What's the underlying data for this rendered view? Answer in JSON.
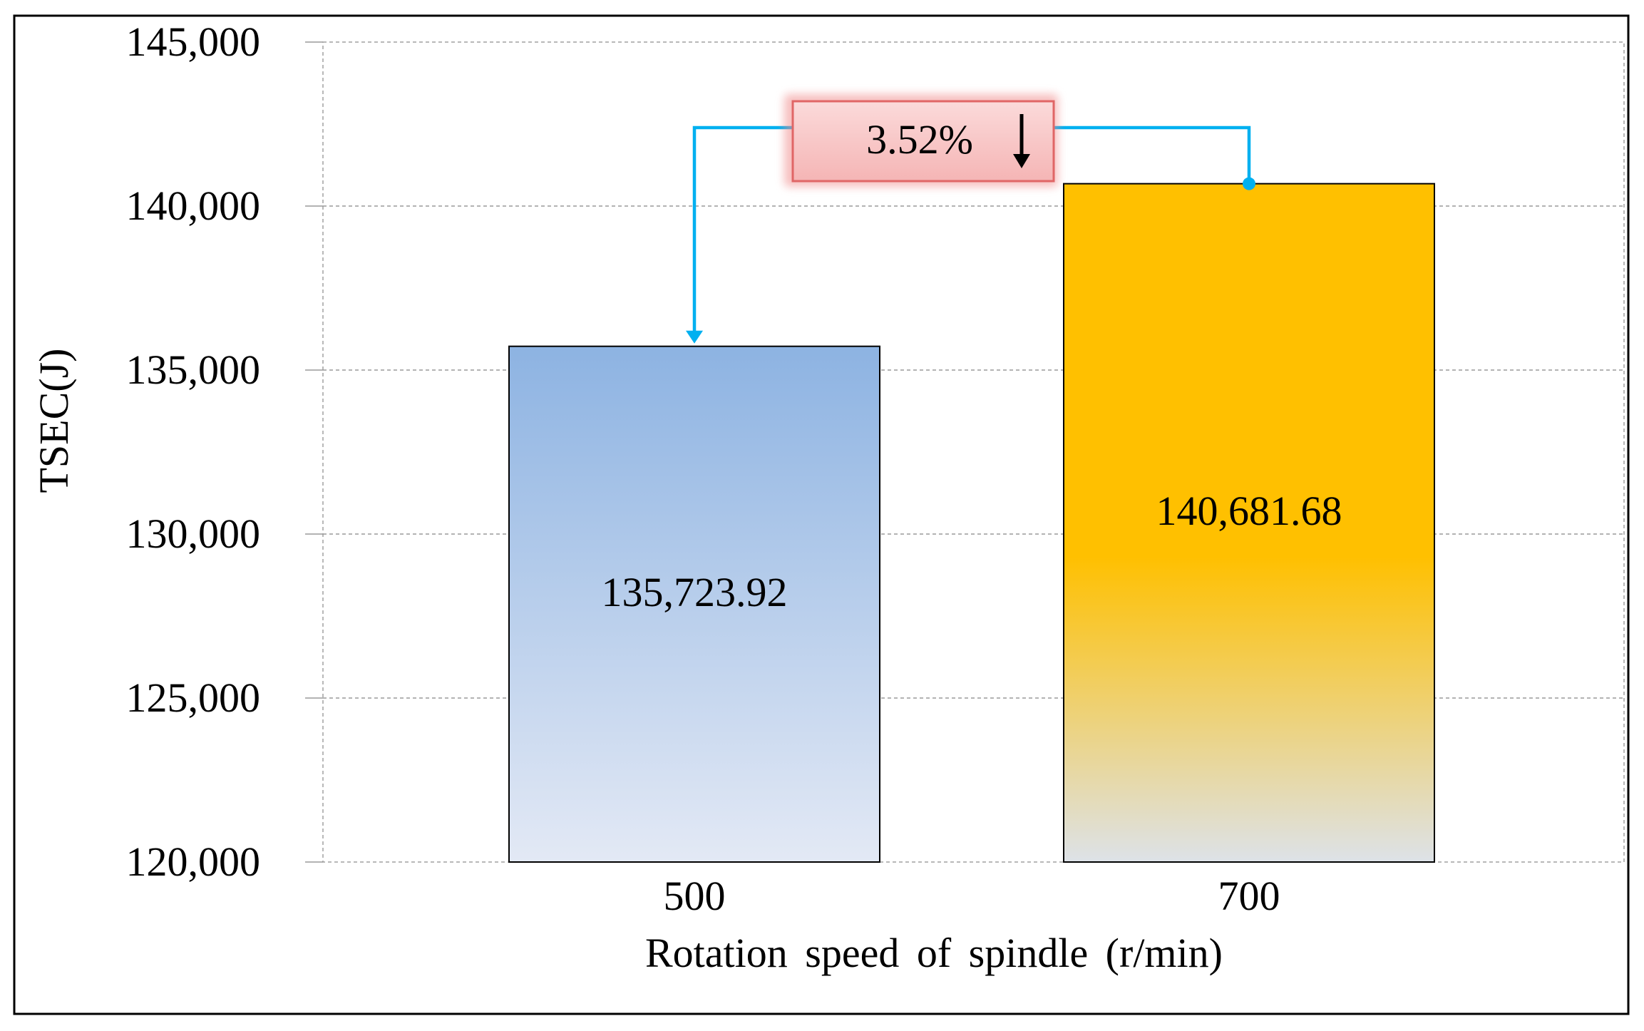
{
  "chart_data": {
    "type": "bar",
    "title": "",
    "xlabel": "Rotation speed of spindle (r/min)",
    "ylabel": "TSEC(J)",
    "categories": [
      "500",
      "700"
    ],
    "values": [
      135723.92,
      140681.68
    ],
    "value_labels": [
      "135,723.92",
      "140,681.68"
    ],
    "ylim": [
      120000,
      145000
    ],
    "yticks": [
      120000,
      125000,
      130000,
      135000,
      140000,
      145000
    ],
    "ytick_labels": [
      "120,000",
      "125,000",
      "130,000",
      "135,000",
      "140,000",
      "145,000"
    ],
    "grid": true,
    "legend": "none",
    "annotation": {
      "text": "3.52%",
      "arrow": "down",
      "from": "700",
      "to": "500"
    },
    "colors": {
      "bar_500_top": "#8db3e2",
      "bar_500_bottom": "#e3e9f5",
      "bar_700_top": "#ffc000",
      "bar_700_bottom": "#dde2e8",
      "connector": "#00b0f0",
      "annotation_fill": "#f8c3c3",
      "annotation_border": "#e06666"
    }
  }
}
